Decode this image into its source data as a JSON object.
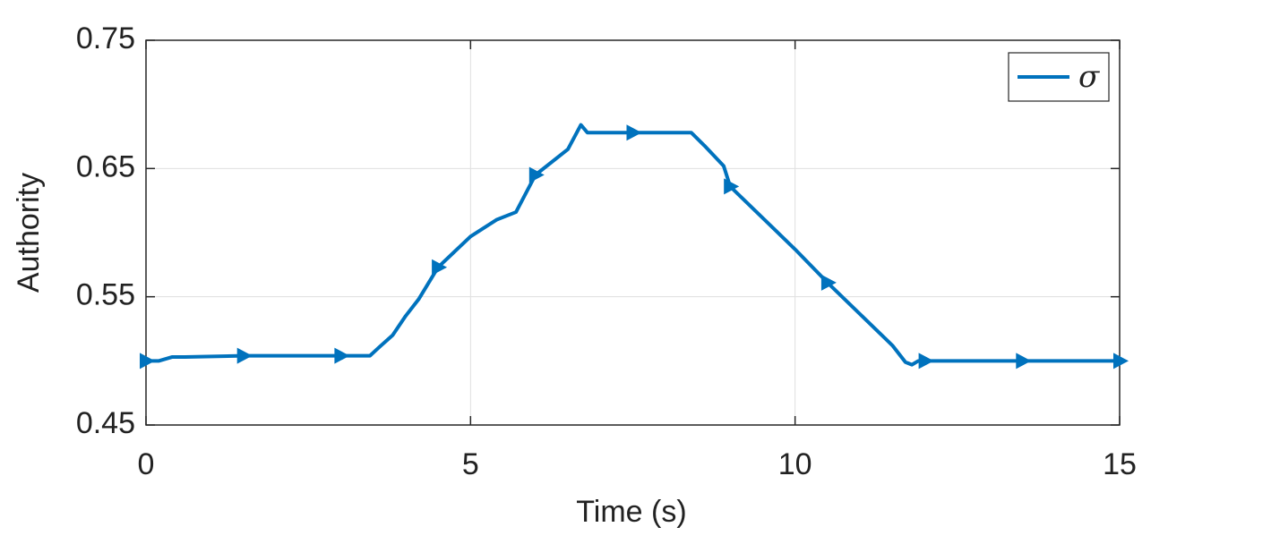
{
  "chart_data": {
    "type": "line",
    "xlabel": "Time (s)",
    "ylabel": "Authority",
    "xlim": [
      0,
      15
    ],
    "ylim": [
      0.45,
      0.75
    ],
    "xticks": [
      0,
      5,
      10,
      15
    ],
    "yticks": [
      0.45,
      0.55,
      0.65,
      0.75
    ],
    "grid": true,
    "legend": "upper right",
    "marker": "triangle-right",
    "marker_interval": 1.5,
    "series": [
      {
        "name": "σ",
        "color": "#0072bd",
        "x": [
          0,
          0.2,
          0.4,
          0.6,
          1.5,
          3,
          3.45,
          3.6,
          3.8,
          4.0,
          4.2,
          4.5,
          5,
          5.4,
          5.7,
          6,
          6.5,
          6.7,
          6.8,
          7.5,
          8.4,
          8.6,
          8.9,
          9,
          10,
          10.5,
          11.5,
          11.7,
          11.8,
          11.9,
          12,
          13.5,
          15
        ],
        "values": [
          0.5,
          0.5,
          0.503,
          0.503,
          0.504,
          0.504,
          0.504,
          0.511,
          0.52,
          0.535,
          0.548,
          0.573,
          0.597,
          0.61,
          0.616,
          0.645,
          0.665,
          0.684,
          0.678,
          0.678,
          0.678,
          0.668,
          0.652,
          0.636,
          0.587,
          0.561,
          0.512,
          0.499,
          0.497,
          0.5,
          0.5,
          0.5,
          0.5
        ]
      }
    ]
  }
}
